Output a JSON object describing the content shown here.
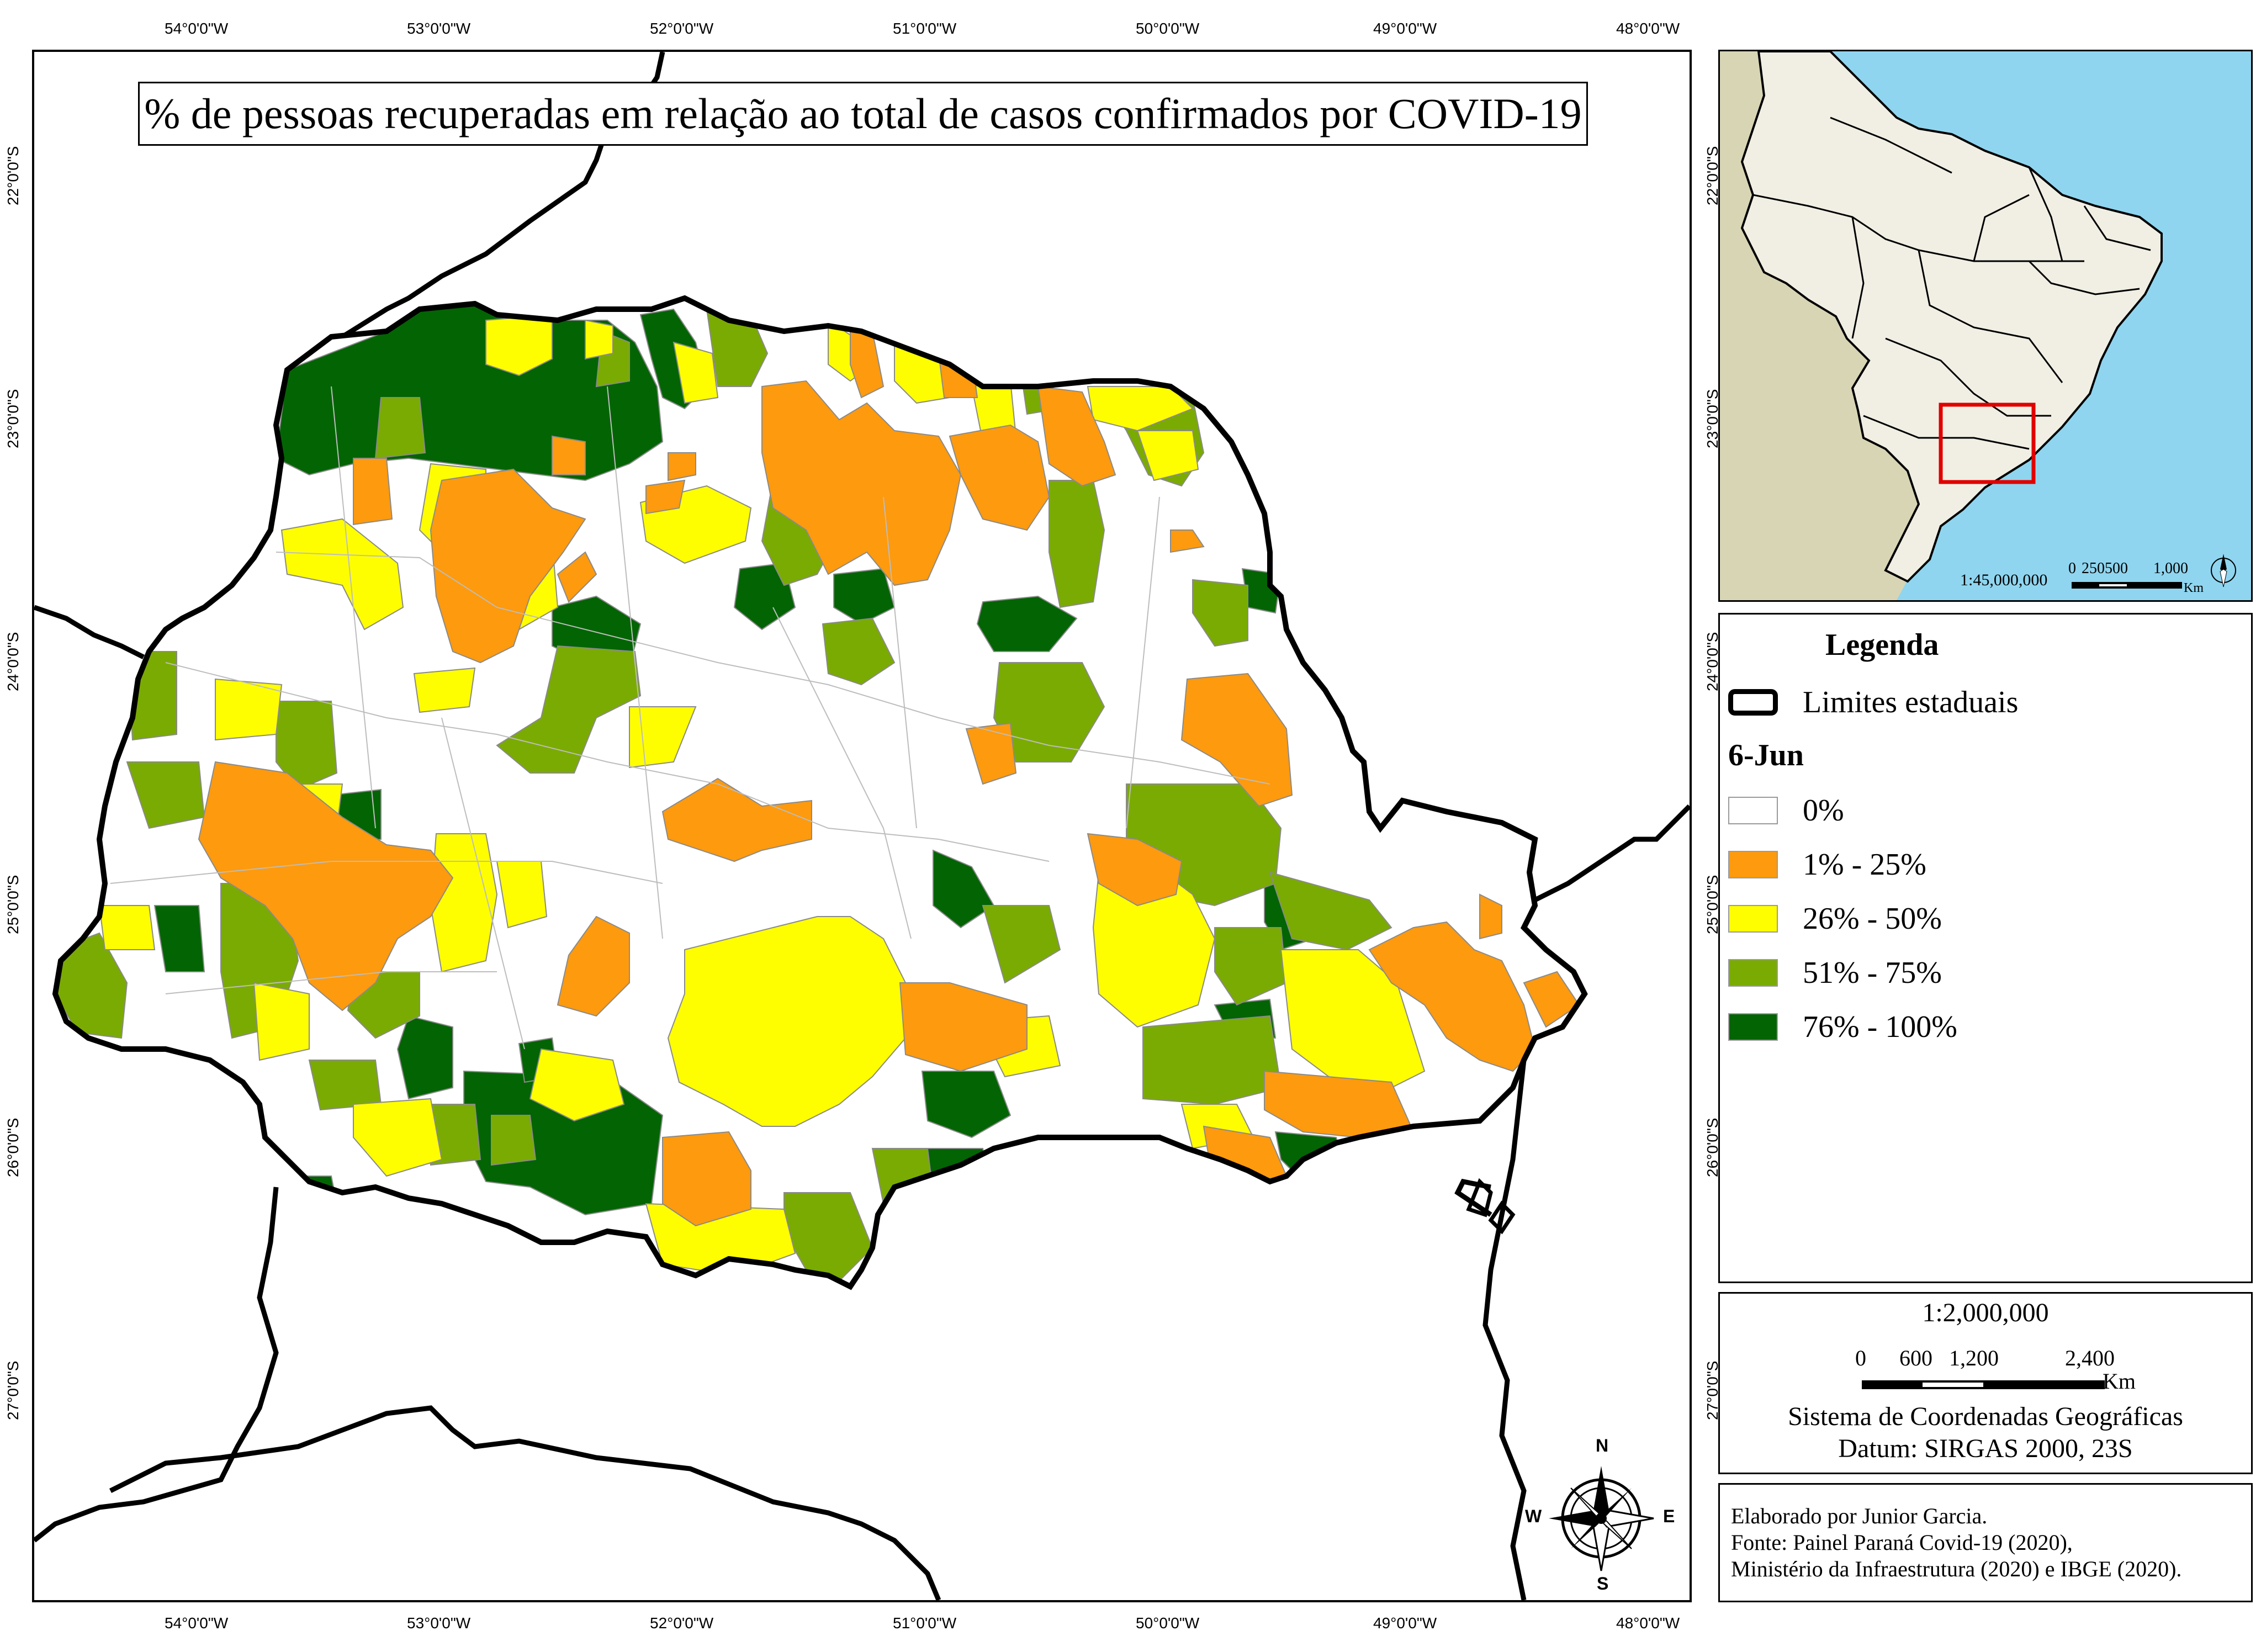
{
  "title": "% de pessoas recuperadas em relação ao total de casos confirmados por COVID-19",
  "grid": {
    "longitudes": [
      "54°0'0\"W",
      "53°0'0\"W",
      "52°0'0\"W",
      "51°0'0\"W",
      "50°0'0\"W",
      "49°0'0\"W",
      "48°0'0\"W"
    ],
    "latitudes": [
      "22°0'0\"S",
      "23°0'0\"S",
      "24°0'0\"S",
      "25°0'0\"S",
      "26°0'0\"S",
      "27°0'0\"S"
    ]
  },
  "inset": {
    "scale_ratio": "1:45,000,000",
    "scale_ticks": [
      "0",
      "250",
      "500",
      "1,000"
    ],
    "scale_unit": "Km"
  },
  "legend": {
    "title": "Legenda",
    "boundary_label": "Limites estaduais",
    "date_label": "6-Jun",
    "classes": [
      {
        "label": "0%",
        "color": "#ffffff"
      },
      {
        "label": "1% - 25%",
        "color": "#fe9a0d"
      },
      {
        "label": "26% - 50%",
        "color": "#fefe00"
      },
      {
        "label": "51% - 75%",
        "color": "#7aab02"
      },
      {
        "label": "76% - 100%",
        "color": "#036404"
      }
    ]
  },
  "scale": {
    "ratio": "1:2,000,000",
    "ticks": [
      "0",
      "600",
      "1,200",
      "2,400"
    ],
    "unit": "Km",
    "crs": "Sistema de Coordenadas Geográficas",
    "datum": "Datum: SIRGAS 2000, 23S"
  },
  "north_arrow": {
    "n": "N",
    "s": "S",
    "e": "E",
    "w": "W"
  },
  "credits": {
    "line1": "Elaborado por Junior Garcia.",
    "line2": "Fonte: Painel Paraná Covid-19 (2020),",
    "line3": "Ministério da Infraestrutura (2020) e IBGE (2020)."
  },
  "colors": {
    "ocean": "#8fd5ef",
    "land": "#d8d5b5",
    "brazil": "#f1efe4",
    "highlight": "#e00000"
  }
}
